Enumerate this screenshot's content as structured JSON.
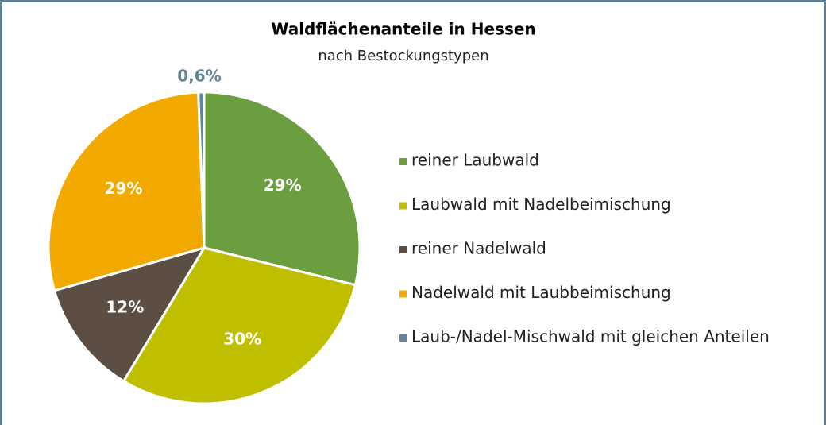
{
  "chart_data": {
    "type": "pie",
    "title": "Waldflächenanteile in Hessen",
    "subtitle": "nach Bestockungstypen",
    "categories": [
      "reiner Laubwald",
      "Laubwald mit Nadelbeimischung",
      "reiner Nadelwald",
      "Nadelwald mit Laubbeimischung",
      "Laub-/Nadel-Mischwald mit gleichen Anteilen"
    ],
    "values": [
      29,
      30,
      12,
      29,
      0.6
    ],
    "value_labels": [
      "29%",
      "30%",
      "12%",
      "29%",
      "0,6%"
    ],
    "colors": [
      "#6a9e3f",
      "#bfbf00",
      "#5d4e44",
      "#f2a900",
      "#5f8799"
    ],
    "legend": "right"
  }
}
